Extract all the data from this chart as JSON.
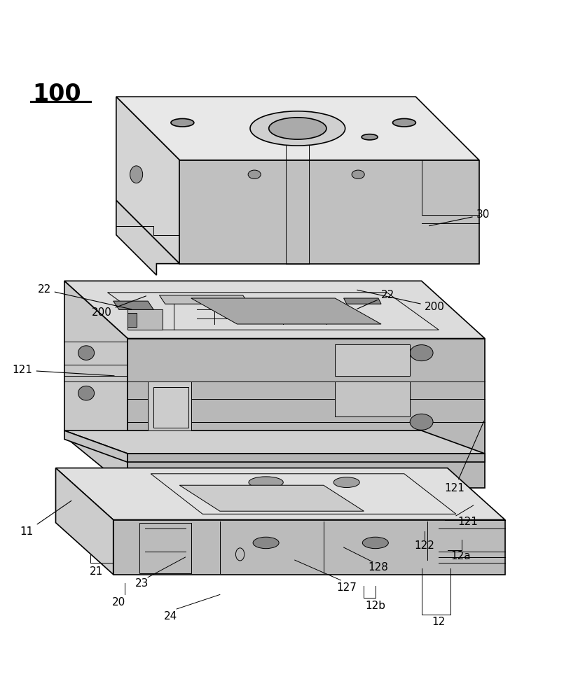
{
  "title": "100",
  "background_color": "#ffffff",
  "line_color": "#000000",
  "figsize": [
    8.25,
    10.0
  ],
  "dpi": 100,
  "lw_main": 1.2,
  "lw_thin": 0.7,
  "lw_thick": 1.8,
  "colors": {
    "top_face": "#e8e8e8",
    "front_face": "#d0d0d0",
    "right_face": "#c0c0c0",
    "left_face": "#d4d4d4",
    "mid_top": "#dcdcdc",
    "mid_right": "#b8b8b8",
    "mid_front": "#c8c8c8",
    "base_top": "#e0e0e0",
    "base_right": "#bbbbbb",
    "base_front": "#cccccc",
    "hole": "#999999",
    "cavity": "#a8a8a8",
    "dark": "#888888"
  }
}
